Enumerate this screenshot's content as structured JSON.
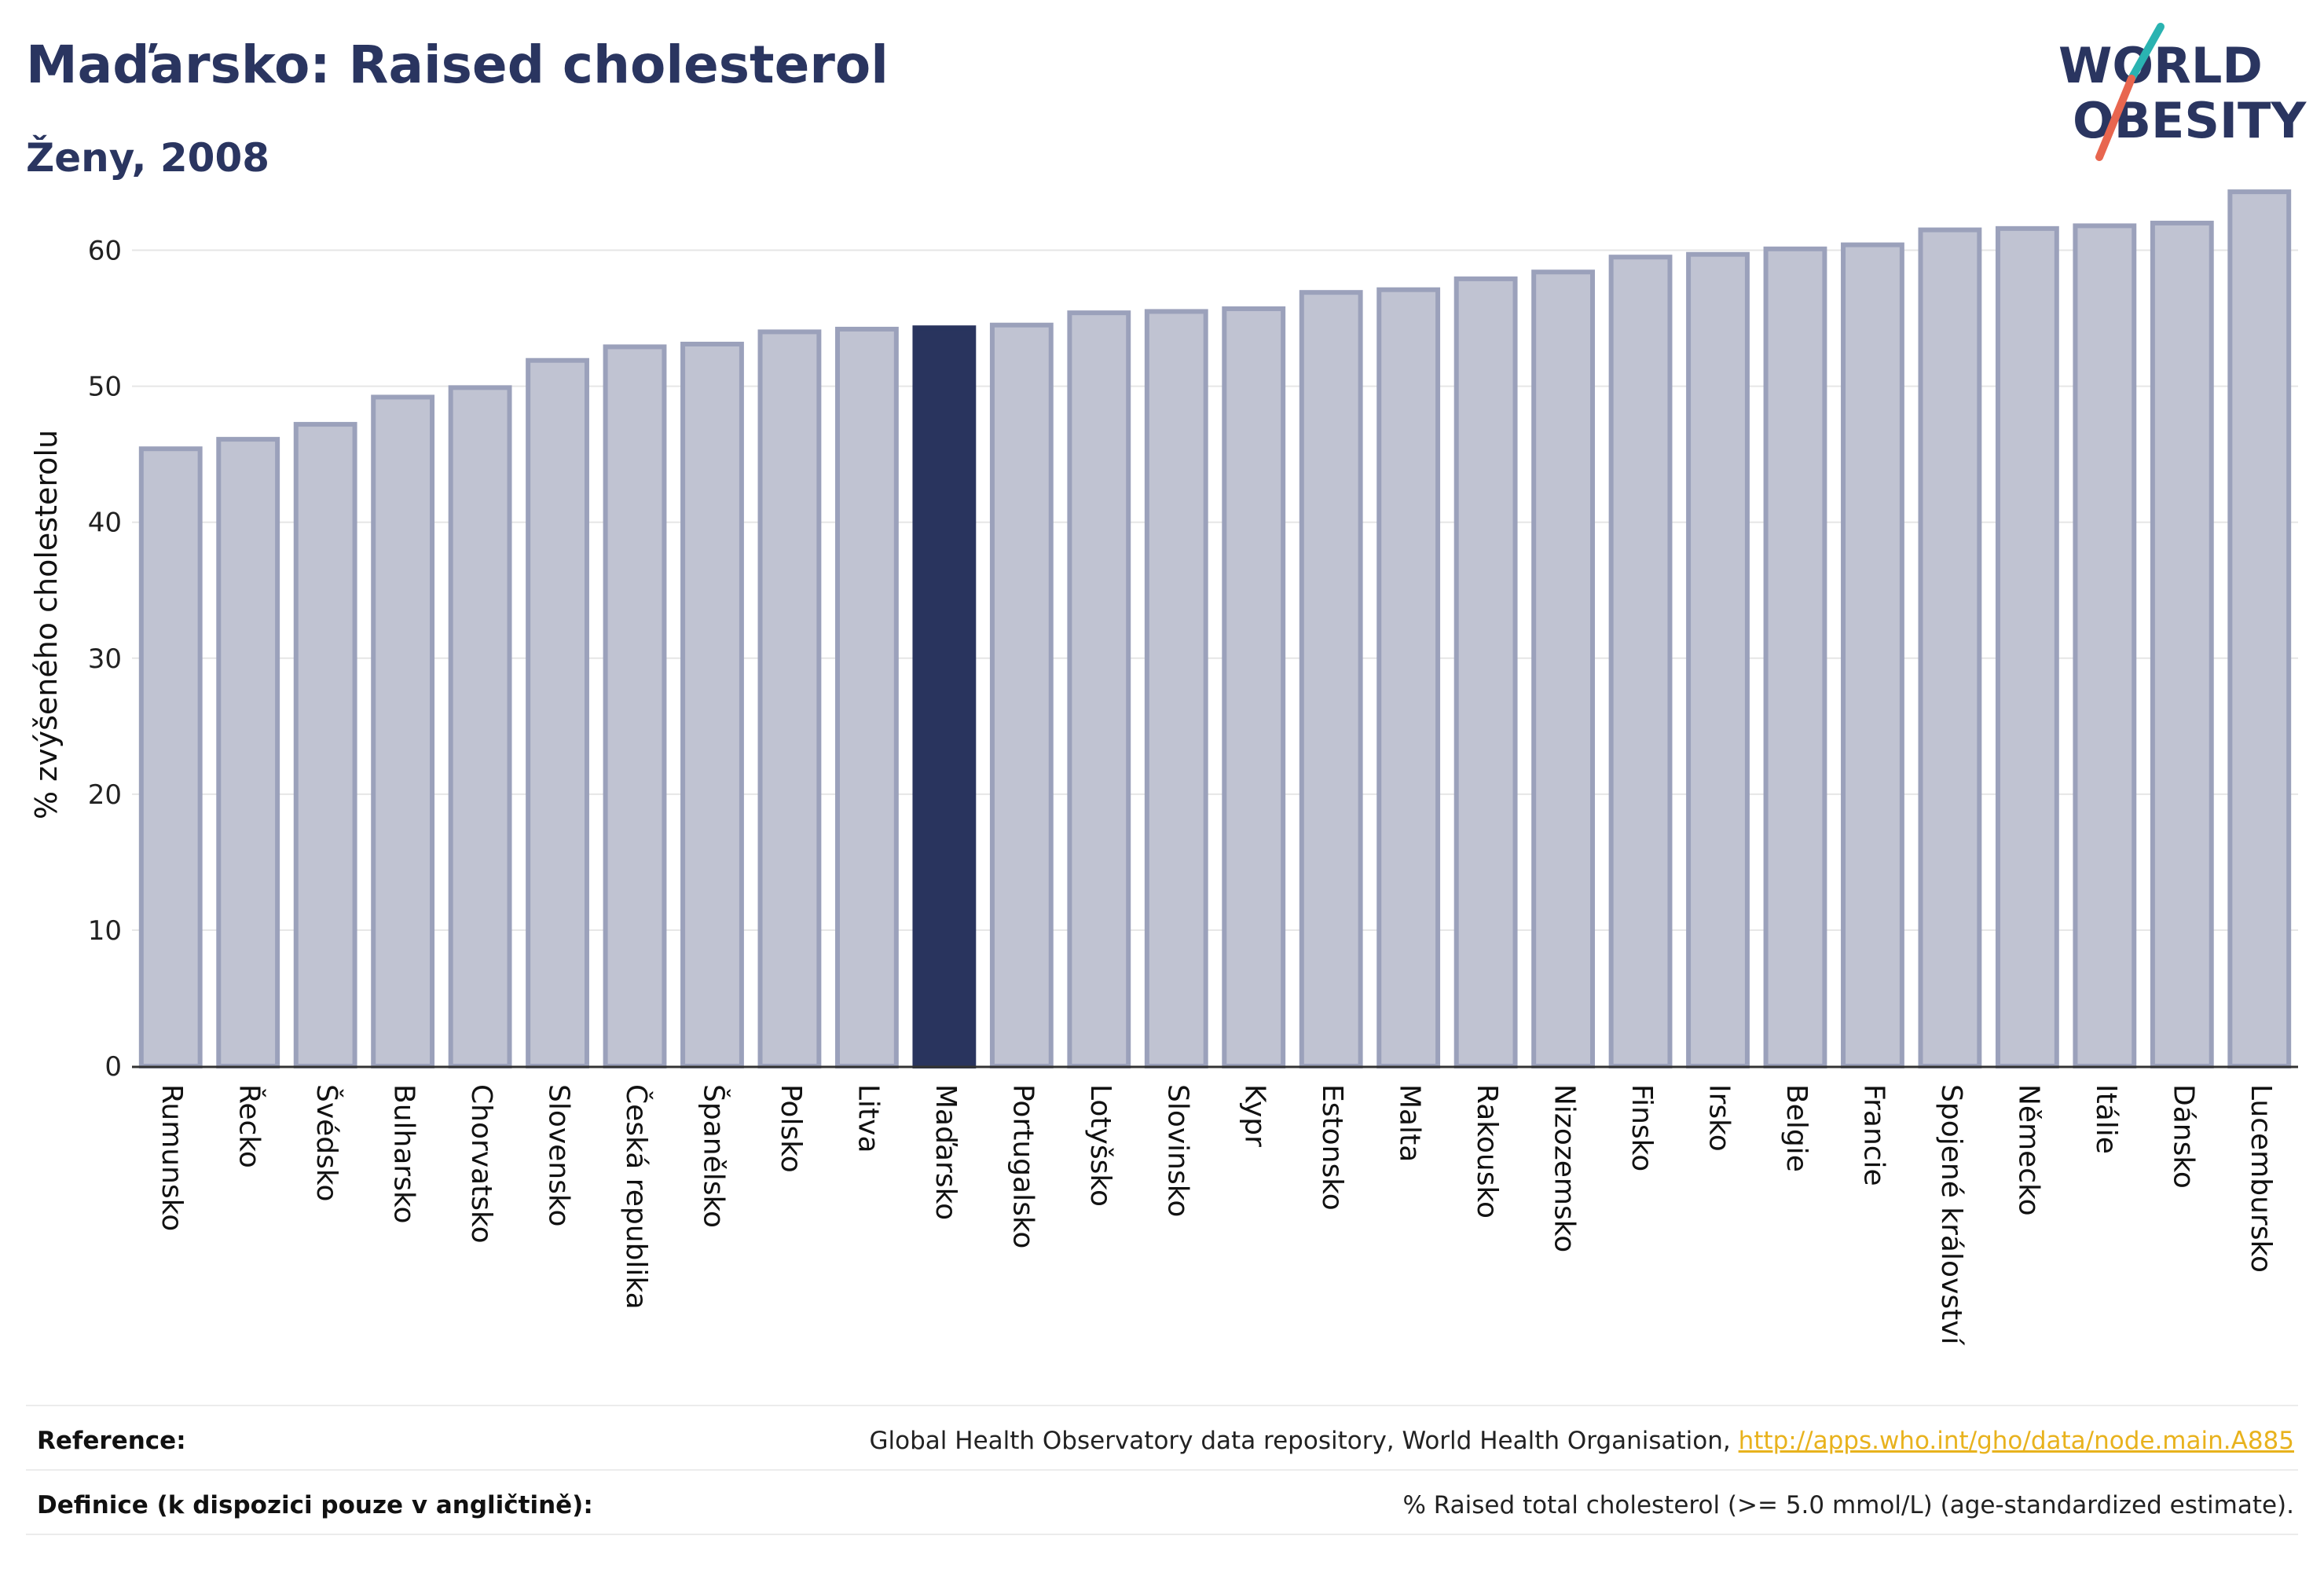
{
  "header": {
    "title": "Maďarsko: Raised cholesterol",
    "subtitle": "Ženy, 2008"
  },
  "logo": {
    "line1": "WORLD",
    "line2": "OBESITY",
    "colors": {
      "text": "#2a3560",
      "slash_teal": "#2ab3b1",
      "slash_coral": "#e8664f"
    }
  },
  "colors": {
    "bar": "#c0c3d2",
    "bar_border": "#9ba1bb",
    "highlight": "#29345e",
    "grid": "#e6e6e6",
    "axis": "#333333"
  },
  "chart_data": {
    "type": "bar",
    "ylabel": "% zvýšeného cholesterolu",
    "ylim": [
      0,
      65
    ],
    "yticks": [
      0,
      10,
      20,
      30,
      40,
      50,
      60
    ],
    "grid": true,
    "highlight": "Maďarsko",
    "categories": [
      "Rumunsko",
      "Řecko",
      "Švédsko",
      "Bulharsko",
      "Chorvatsko",
      "Slovensko",
      "Česká republika",
      "Španělsko",
      "Polsko",
      "Litva",
      "Maďarsko",
      "Portugalsko",
      "Lotyšsko",
      "Slovinsko",
      "Kypr",
      "Estonsko",
      "Malta",
      "Rakousko",
      "Nizozemsko",
      "Finsko",
      "Irsko",
      "Belgie",
      "Francie",
      "Spojené království",
      "Německo",
      "Itálie",
      "Dánsko",
      "Lucembursko"
    ],
    "values": [
      45.4,
      46.1,
      47.2,
      49.2,
      49.9,
      51.9,
      52.9,
      53.1,
      54.0,
      54.2,
      54.3,
      54.5,
      55.4,
      55.5,
      55.7,
      56.9,
      57.1,
      57.9,
      58.4,
      59.5,
      59.7,
      60.1,
      60.4,
      61.5,
      61.6,
      61.8,
      62.0,
      64.3
    ]
  },
  "footer": {
    "reference_label": "Reference:",
    "reference_text": "Global Health Observatory data repository, World Health Organisation, ",
    "reference_link": "http://apps.who.int/gho/data/node.main.A885",
    "definition_label": "Definice (k dispozici pouze v angličtině):",
    "definition_text": "% Raised total cholesterol (>= 5.0 mmol/L) (age-standardized estimate)."
  }
}
